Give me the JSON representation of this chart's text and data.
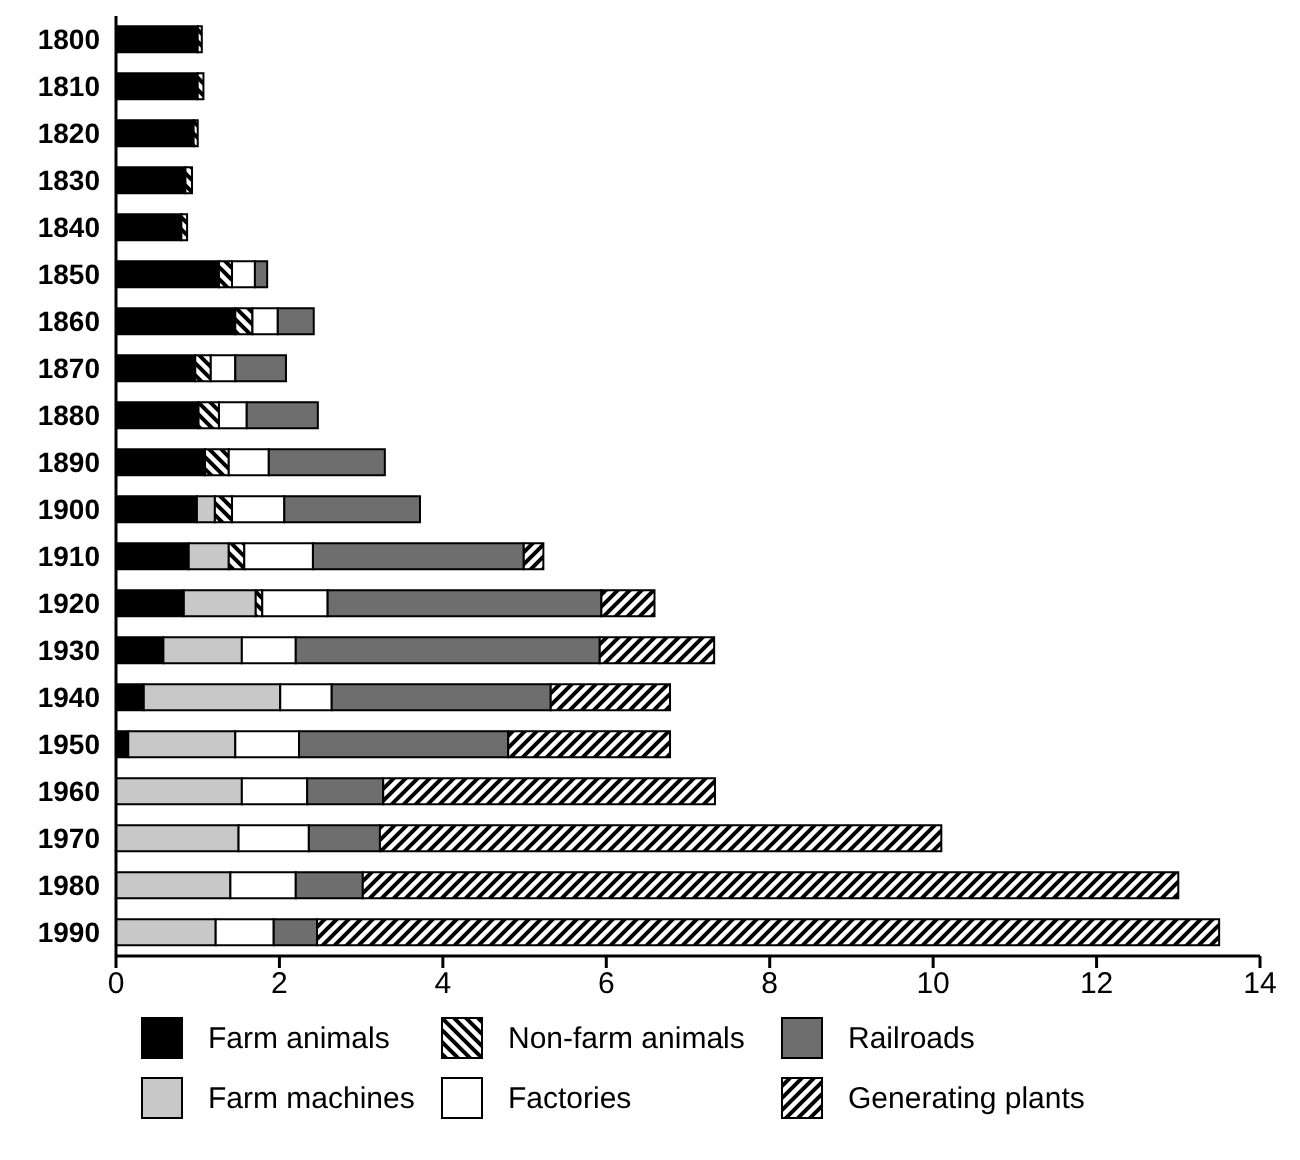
{
  "chart_data": {
    "type": "bar",
    "orientation": "horizontal",
    "stacked": true,
    "legend": "bottom",
    "categories": [
      "1800",
      "1810",
      "1820",
      "1830",
      "1840",
      "1850",
      "1860",
      "1870",
      "1880",
      "1890",
      "1900",
      "1910",
      "1920",
      "1930",
      "1940",
      "1950",
      "1960",
      "1970",
      "1980",
      "1990"
    ],
    "xlim": [
      0,
      14
    ],
    "xticks": [
      0,
      2,
      4,
      6,
      8,
      10,
      12,
      14
    ],
    "series": [
      {
        "name": "Farm animals",
        "color": "#000000",
        "values": [
          1.0,
          1.0,
          0.95,
          0.85,
          0.8,
          1.26,
          1.46,
          0.97,
          1.01,
          1.09,
          0.99,
          0.89,
          0.83,
          0.58,
          0.34,
          0.15,
          0,
          0,
          0,
          0
        ]
      },
      {
        "name": "Farm machines",
        "color": "#c8c8c8",
        "values": [
          0,
          0,
          0,
          0,
          0,
          0,
          0,
          0,
          0,
          0,
          0.22,
          0.49,
          0.88,
          0.96,
          1.67,
          1.31,
          1.54,
          1.5,
          1.4,
          1.22
        ]
      },
      {
        "name": "Non-farm animals",
        "color": "#000000",
        "values": [
          0.05,
          0.07,
          0.05,
          0.08,
          0.07,
          0.16,
          0.21,
          0.19,
          0.25,
          0.29,
          0.21,
          0.19,
          0.08,
          0,
          0,
          0,
          0,
          0,
          0,
          0
        ]
      },
      {
        "name": "Factories",
        "color": "#ffffff",
        "values": [
          0,
          0,
          0,
          0,
          0,
          0.28,
          0.31,
          0.3,
          0.34,
          0.49,
          0.64,
          0.84,
          0.8,
          0.66,
          0.63,
          0.78,
          0.8,
          0.86,
          0.8,
          0.71
        ]
      },
      {
        "name": "Railroads",
        "color": "#6e6e6e",
        "values": [
          0,
          0,
          0,
          0,
          0,
          0.15,
          0.44,
          0.62,
          0.87,
          1.42,
          1.66,
          2.58,
          3.35,
          3.72,
          2.68,
          2.56,
          0.93,
          0.87,
          0.82,
          0.53
        ]
      },
      {
        "name": "Generating plants",
        "color": "#000000",
        "values": [
          0,
          0,
          0,
          0,
          0,
          0,
          0,
          0,
          0,
          0,
          0,
          0.24,
          0.65,
          1.4,
          1.46,
          1.98,
          4.06,
          6.87,
          9.98,
          11.04
        ]
      }
    ]
  }
}
